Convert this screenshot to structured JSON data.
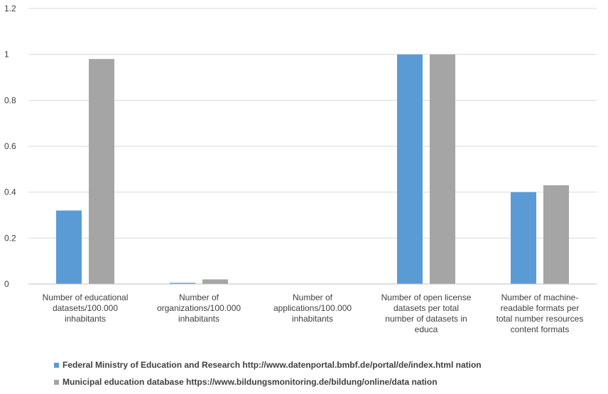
{
  "chart_data": {
    "type": "bar",
    "title": "",
    "xlabel": "",
    "ylabel": "",
    "ylim": [
      0,
      1.2
    ],
    "yticks": [
      "0",
      "0.2",
      "0.4",
      "0.6",
      "0.8",
      "1",
      "1.2"
    ],
    "grid": true,
    "legend_position": "bottom",
    "categories": [
      [
        "Number of educational",
        "datasets/100.000",
        "inhabitants"
      ],
      [
        "Number of",
        "organizations/100.000",
        "inhabitants"
      ],
      [
        "Number of",
        "applications/100.000",
        "inhabitants"
      ],
      [
        "Number of open license",
        "datasets per total",
        "number of datasets in",
        "educa"
      ],
      [
        "Number of machine-",
        "readable formats per",
        "total number resources",
        "content formats"
      ]
    ],
    "series": [
      {
        "name": "Federal Ministry of Education and Research http://www.datenportal.bmbf.de/portal/de/index.html nation",
        "color": "#5b9bd5",
        "values": [
          0.32,
          0.005,
          0,
          1.0,
          0.4
        ]
      },
      {
        "name": "Municipal education database https://www.bildungsmonitoring.de/bildung/online/data nation",
        "color": "#a5a5a5",
        "values": [
          0.98,
          0.02,
          0,
          1.0,
          0.43
        ]
      }
    ]
  }
}
